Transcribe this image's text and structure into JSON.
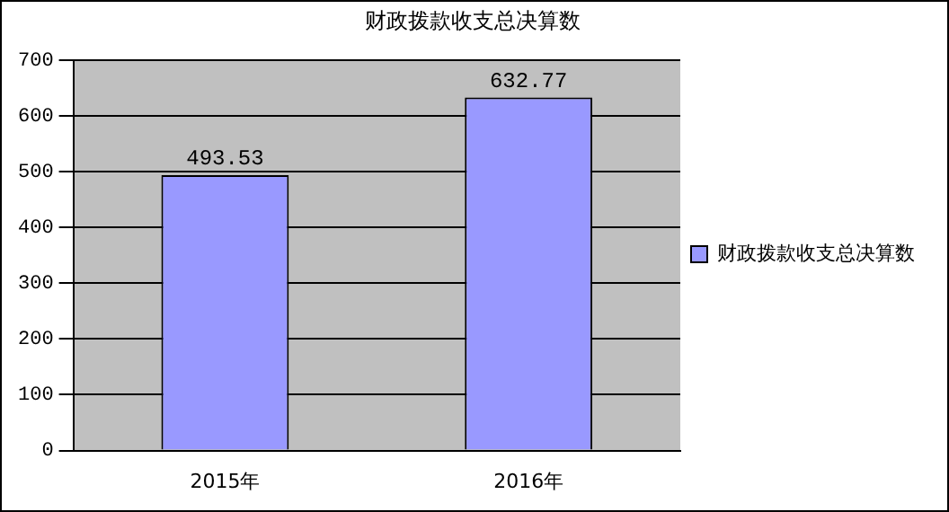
{
  "chart_data": {
    "type": "bar",
    "title": "财政拨款收支总决算数",
    "categories": [
      "2015年",
      "2016年"
    ],
    "series": [
      {
        "name": "财政拨款收支总决算数",
        "color": "#9999ff",
        "values": [
          493.53,
          632.77
        ]
      }
    ],
    "ylim": [
      0,
      700
    ],
    "yticks": [
      0,
      100,
      200,
      300,
      400,
      500,
      600,
      700
    ],
    "grid": "y",
    "legend": "right",
    "data_labels": true
  }
}
